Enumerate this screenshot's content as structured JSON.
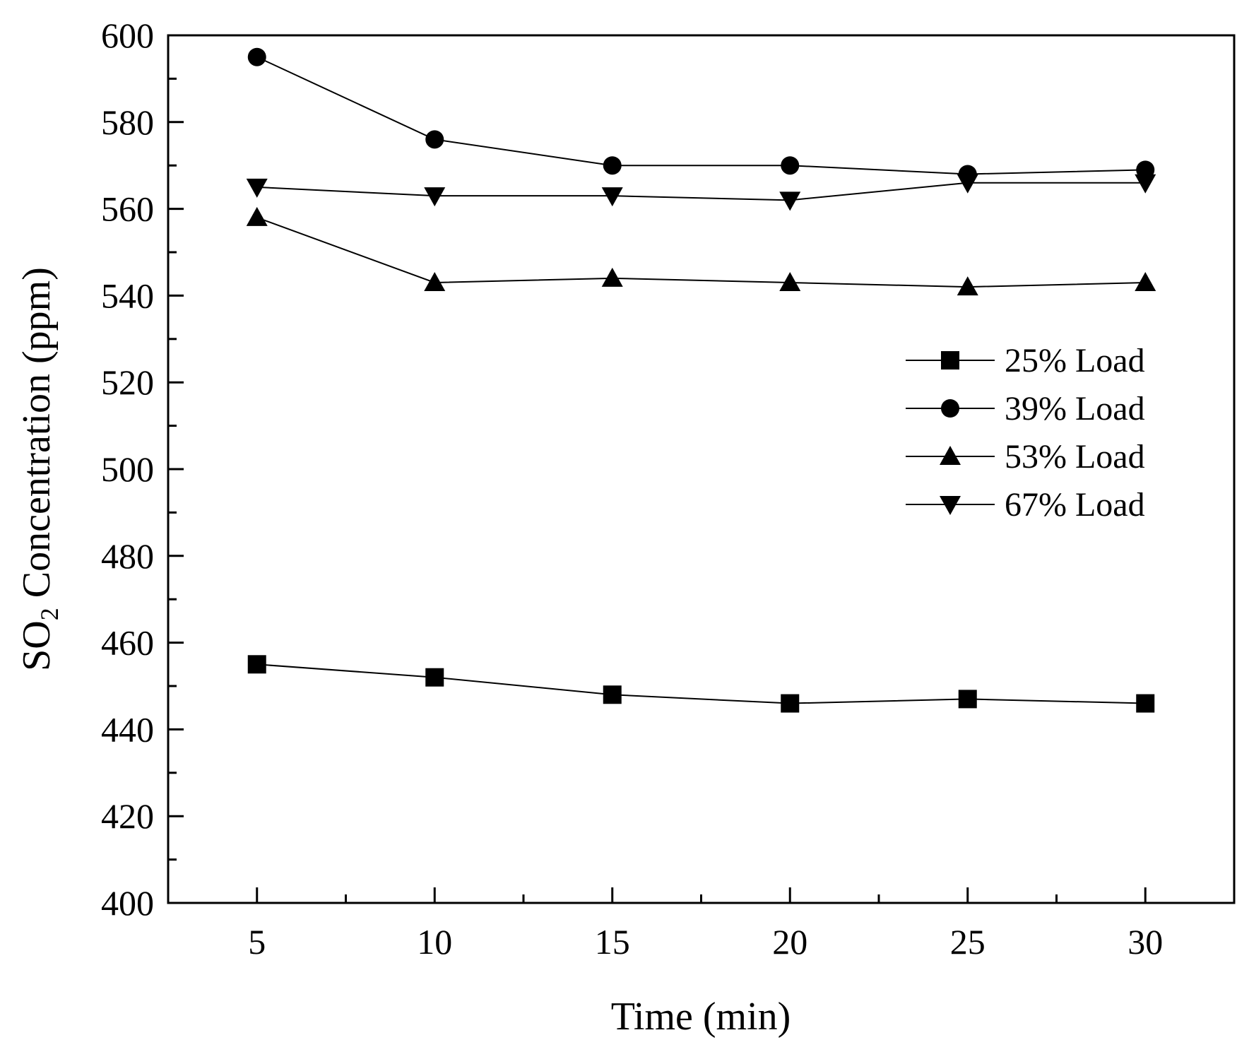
{
  "chart_data": {
    "type": "line",
    "title": "",
    "xlabel": "Time (min)",
    "ylabel_main": "SO",
    "ylabel_sub": "2",
    "ylabel_rest": " Concentration (ppm)",
    "xlim": [
      2.5,
      32.5
    ],
    "ylim": [
      400,
      600
    ],
    "x_ticks": [
      5,
      10,
      15,
      20,
      25,
      30
    ],
    "x_minor_ticks": [
      7.5,
      12.5,
      17.5,
      22.5,
      27.5
    ],
    "y_ticks": [
      400,
      420,
      440,
      460,
      480,
      500,
      520,
      540,
      560,
      580,
      600
    ],
    "y_minor_ticks": [
      410,
      430,
      450,
      470,
      490,
      510,
      530,
      550,
      570,
      590
    ],
    "legend_position": "center-right",
    "x": [
      5,
      10,
      15,
      20,
      25,
      30
    ],
    "series": [
      {
        "name": "25% Load",
        "marker": "square",
        "values": [
          455,
          452,
          448,
          446,
          447,
          446
        ]
      },
      {
        "name": "39% Load",
        "marker": "circle",
        "values": [
          595,
          576,
          570,
          570,
          568,
          569
        ]
      },
      {
        "name": "53% Load",
        "marker": "triangle-up",
        "values": [
          558,
          543,
          544,
          543,
          542,
          543
        ]
      },
      {
        "name": "67% Load",
        "marker": "triangle-down",
        "values": [
          565,
          563,
          563,
          562,
          566,
          566
        ]
      }
    ]
  }
}
